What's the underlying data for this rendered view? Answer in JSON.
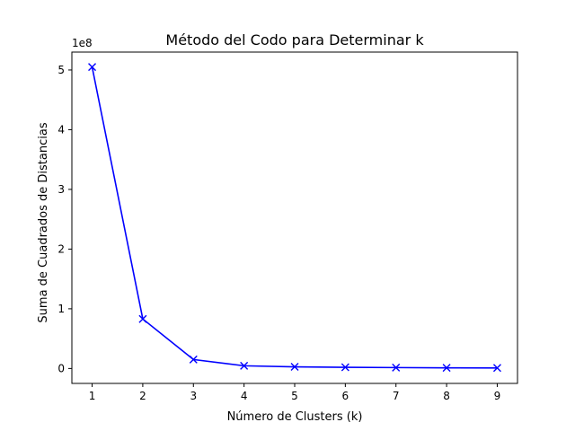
{
  "chart_data": {
    "type": "line",
    "title": "Método del Codo para Determinar k",
    "xlabel": "Número de Clusters (k)",
    "ylabel": "Suma de Cuadrados de Distancias",
    "y_scale_label": "1e8",
    "x": [
      1,
      2,
      3,
      4,
      5,
      6,
      7,
      8,
      9
    ],
    "series": [
      {
        "values": [
          5.05,
          0.83,
          0.15,
          0.045,
          0.028,
          0.02,
          0.015,
          0.011,
          0.009
        ],
        "color": "#0000ff",
        "marker": "x"
      }
    ],
    "xticks": [
      1,
      2,
      3,
      4,
      5,
      6,
      7,
      8,
      9
    ],
    "yticks": [
      0,
      1,
      2,
      3,
      4,
      5
    ],
    "xlim": [
      0.6,
      9.4
    ],
    "ylim": [
      -0.25,
      5.3
    ],
    "grid": false
  }
}
